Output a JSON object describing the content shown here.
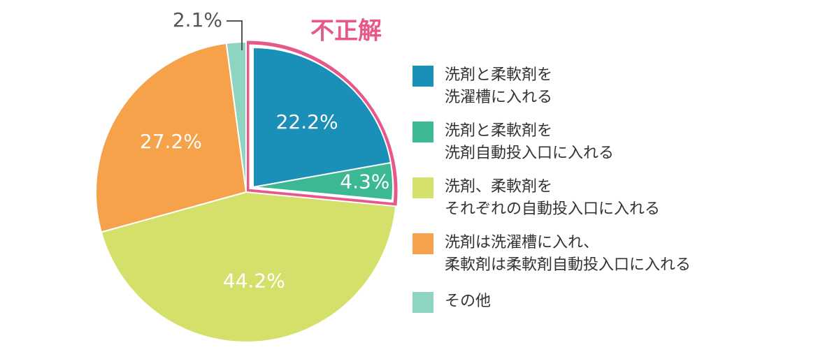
{
  "chart_data": {
    "type": "pie",
    "annotation": "不正解",
    "categories": [
      "洗剤と柔軟剤を\n洗濯槽に入れる",
      "洗剤と柔軟剤を\n洗剤自動投入口に入れる",
      "洗剤、柔軟剤を\nそれぞれの自動投入口に入れる",
      "洗剤は洗濯槽に入れ、\n柔軟剤は柔軟剤自動投入口に入れる",
      "その他"
    ],
    "values": [
      22.2,
      4.3,
      44.2,
      27.2,
      2.1
    ],
    "value_labels": [
      "22.2%",
      "4.3%",
      "44.2%",
      "27.2%",
      "2.1%"
    ],
    "colors": [
      "#1a8fb8",
      "#3db894",
      "#d4e06a",
      "#f5a24a",
      "#8fd4c0"
    ],
    "legend": "right"
  }
}
